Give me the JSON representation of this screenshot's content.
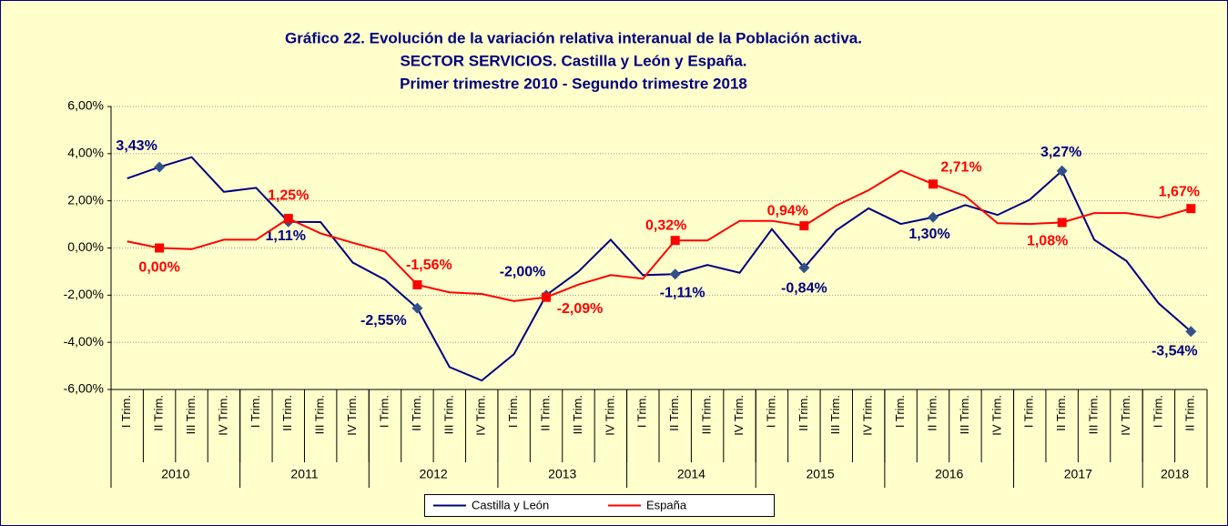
{
  "chart_data": {
    "type": "line",
    "title": [
      "Gráfico 22. Evolución de la variación relativa interanual  de la Población activa.",
      "SECTOR SERVICIOS. Castilla y León y España.",
      "Primer trimestre 2010 - Segundo trimestre 2018"
    ],
    "categories": [
      "I Trim.",
      "II Trim.",
      "III Trim.",
      "IV Trim.",
      "I Trim.",
      "II Trim.",
      "III Trim.",
      "IV Trim.",
      "I Trim.",
      "II Trim.",
      "III Trim.",
      "IV Trim.",
      "I Trim.",
      "II Trim.",
      "III Trim.",
      "IV Trim.",
      "I Trim.",
      "II Trim.",
      "III Trim.",
      "IV Trim.",
      "I Trim.",
      "II Trim.",
      "III Trim.",
      "IV Trim.",
      "I Trim.",
      "II Trim.",
      "III Trim.",
      "IV Trim.",
      "I Trim.",
      "II Trim.",
      "III Trim.",
      "IV Trim.",
      "I Trim.",
      "II Trim."
    ],
    "year_groups": [
      "2010",
      "2011",
      "2012",
      "2013",
      "2014",
      "2015",
      "2016",
      "2017",
      "2018"
    ],
    "series": [
      {
        "name": "Castilla y León",
        "color": "#000080",
        "values": [
          2.95,
          3.43,
          3.85,
          2.38,
          2.55,
          1.11,
          1.1,
          -0.62,
          -1.35,
          -2.55,
          -5.05,
          -5.62,
          -4.5,
          -2.0,
          -1.0,
          0.35,
          -1.15,
          -1.11,
          -0.72,
          -1.05,
          0.8,
          -0.84,
          0.75,
          1.68,
          1.02,
          1.3,
          1.82,
          1.4,
          2.05,
          3.27,
          0.35,
          -0.55,
          -2.35,
          -3.54
        ],
        "value_labels": [
          null,
          "3,43%",
          null,
          null,
          null,
          "1,11%",
          null,
          null,
          null,
          "-2,55%",
          null,
          null,
          null,
          "-2,00%",
          null,
          null,
          null,
          "-1,11%",
          null,
          null,
          null,
          "-0,84%",
          null,
          null,
          null,
          "1,30%",
          null,
          null,
          null,
          "3,27%",
          null,
          null,
          null,
          "-3,54%"
        ]
      },
      {
        "name": "España",
        "color": "#ff0000",
        "values": [
          0.28,
          0.0,
          -0.05,
          0.35,
          0.35,
          1.25,
          0.62,
          0.22,
          -0.15,
          -1.56,
          -1.88,
          -1.95,
          -2.25,
          -2.09,
          -1.55,
          -1.15,
          -1.3,
          0.32,
          0.32,
          1.15,
          1.15,
          0.94,
          1.8,
          2.45,
          3.28,
          2.71,
          2.2,
          1.05,
          1.02,
          1.08,
          1.48,
          1.48,
          1.28,
          1.67
        ],
        "value_labels": [
          null,
          "0,00%",
          null,
          null,
          null,
          "1,25%",
          null,
          null,
          null,
          "-1,56%",
          null,
          null,
          null,
          "-2,09%",
          null,
          null,
          null,
          "0,32%",
          null,
          null,
          null,
          "0,94%",
          null,
          null,
          null,
          "2,71%",
          null,
          null,
          null,
          "1,08%",
          null,
          null,
          null,
          "1,67%"
        ]
      }
    ],
    "ylim": [
      -6,
      6
    ],
    "yticks": [
      {
        "value": -6,
        "label": "-6,00%"
      },
      {
        "value": -4,
        "label": "-4,00%"
      },
      {
        "value": -2,
        "label": "-2,00%"
      },
      {
        "value": 0,
        "label": "0,00%"
      },
      {
        "value": 2,
        "label": "2,00%"
      },
      {
        "value": 4,
        "label": "4,00%"
      },
      {
        "value": 6,
        "label": "6,00%"
      }
    ],
    "grid": true,
    "legend": "bottom"
  }
}
